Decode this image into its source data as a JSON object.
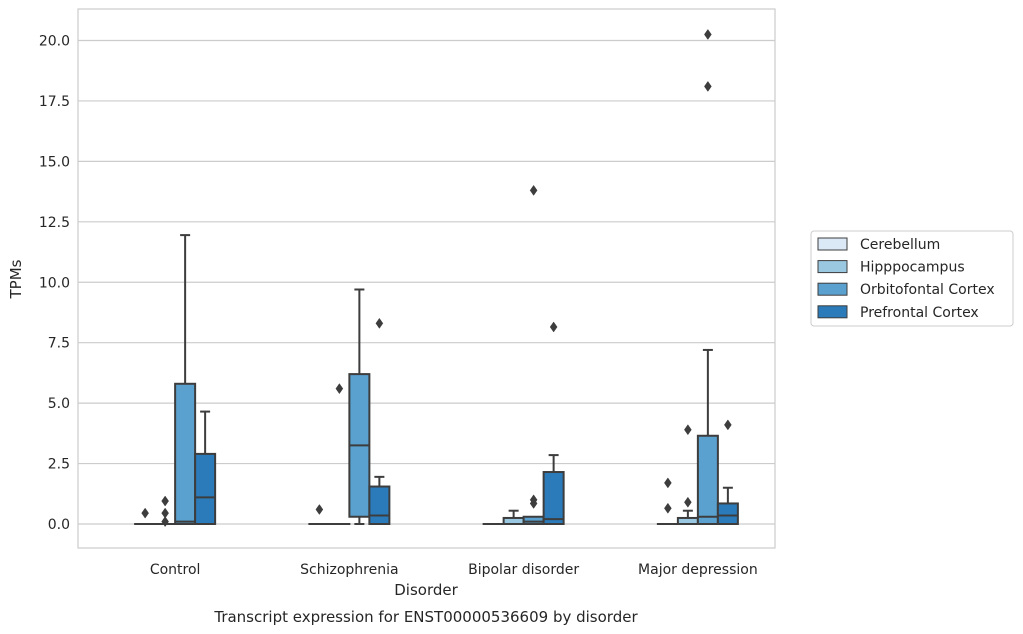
{
  "chart_data": {
    "type": "box",
    "xlabel": "Disorder",
    "ylabel": "TPMs",
    "caption": "Transcript expression for ENST00000536609 by disorder",
    "ylim": [
      -1.0,
      21.3
    ],
    "yticks": [
      "0.0",
      "2.5",
      "5.0",
      "7.5",
      "10.0",
      "12.5",
      "15.0",
      "17.5",
      "20.0"
    ],
    "grid": "horizontal",
    "legend_position": "right",
    "categories": [
      "Control",
      "Schizophrenia",
      "Bipolar disorder",
      "Major depression"
    ],
    "series": [
      {
        "name": "Cerebellum",
        "color": "#dbe9f6",
        "boxes": [
          {
            "q1": 0,
            "median": 0,
            "q3": 0,
            "whisker_low": 0,
            "whisker_high": 0,
            "outliers": [
              0.45
            ]
          },
          {
            "q1": 0,
            "median": 0,
            "q3": 0,
            "whisker_low": 0,
            "whisker_high": 0,
            "outliers": [
              0.6
            ]
          },
          {
            "q1": 0,
            "median": 0,
            "q3": 0,
            "whisker_low": 0,
            "whisker_high": 0,
            "outliers": []
          },
          {
            "q1": 0,
            "median": 0,
            "q3": 0,
            "whisker_low": 0,
            "whisker_high": 0,
            "outliers": [
              1.7,
              0.65
            ]
          }
        ]
      },
      {
        "name": "Hipppocampus",
        "color": "#9ac8e0",
        "boxes": [
          {
            "q1": 0,
            "median": 0,
            "q3": 0,
            "whisker_low": 0,
            "whisker_high": 0,
            "outliers": [
              0.95,
              0.45,
              0.1
            ]
          },
          {
            "q1": 0,
            "median": 0,
            "q3": 0,
            "whisker_low": 0,
            "whisker_high": 0,
            "outliers": [
              5.6
            ]
          },
          {
            "q1": 0,
            "median": 0,
            "q3": 0.25,
            "whisker_low": 0,
            "whisker_high": 0.55,
            "outliers": []
          },
          {
            "q1": 0,
            "median": 0,
            "q3": 0.25,
            "whisker_low": 0,
            "whisker_high": 0.55,
            "outliers": [
              3.9,
              0.9
            ]
          }
        ]
      },
      {
        "name": "Orbitofontal Cortex",
        "color": "#5aa1cf",
        "boxes": [
          {
            "q1": 0,
            "median": 0.1,
            "q3": 5.8,
            "whisker_low": 0,
            "whisker_high": 11.95,
            "outliers": []
          },
          {
            "q1": 0.3,
            "median": 3.25,
            "q3": 6.2,
            "whisker_low": 0,
            "whisker_high": 9.7,
            "outliers": []
          },
          {
            "q1": 0,
            "median": 0.1,
            "q3": 0.3,
            "whisker_low": 0,
            "whisker_high": 0.3,
            "outliers": [
              13.8,
              1.0,
              0.85
            ]
          },
          {
            "q1": 0,
            "median": 0.3,
            "q3": 3.65,
            "whisker_low": 0,
            "whisker_high": 7.2,
            "outliers": [
              20.25,
              18.1
            ]
          }
        ]
      },
      {
        "name": "Prefrontal Cortex",
        "color": "#2b7bba",
        "boxes": [
          {
            "q1": 0,
            "median": 1.1,
            "q3": 2.9,
            "whisker_low": 0,
            "whisker_high": 4.65,
            "outliers": []
          },
          {
            "q1": 0,
            "median": 0.35,
            "q3": 1.55,
            "whisker_low": 0,
            "whisker_high": 1.95,
            "outliers": [
              8.3
            ]
          },
          {
            "q1": 0,
            "median": 0.2,
            "q3": 2.15,
            "whisker_low": 0,
            "whisker_high": 2.85,
            "outliers": [
              8.15
            ]
          },
          {
            "q1": 0,
            "median": 0.35,
            "q3": 0.85,
            "whisker_low": 0,
            "whisker_high": 1.5,
            "outliers": [
              4.1
            ]
          }
        ]
      }
    ]
  }
}
